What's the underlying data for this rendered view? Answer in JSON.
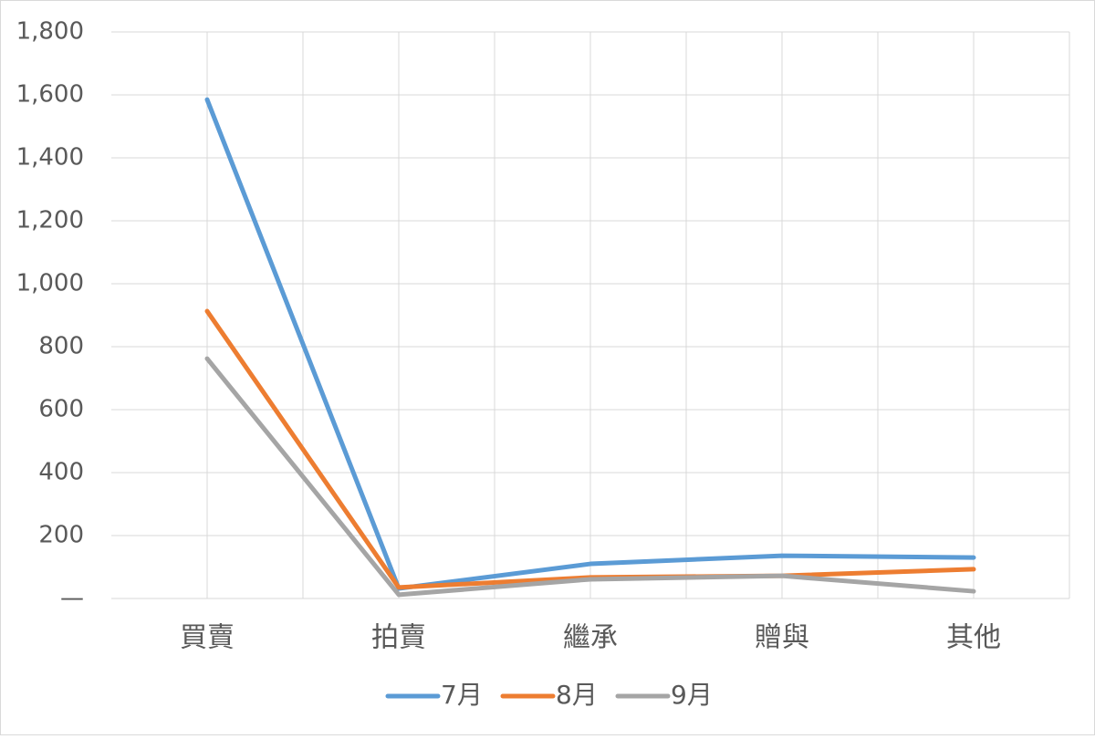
{
  "chart_data": {
    "type": "line",
    "categories": [
      "買賣",
      "拍賣",
      "繼承",
      "贈與",
      "其他"
    ],
    "series": [
      {
        "name": "7月",
        "color": "#5b9bd5",
        "values": [
          1585,
          32,
          110,
          136,
          130
        ]
      },
      {
        "name": "8月",
        "color": "#ed7d31",
        "values": [
          913,
          35,
          67,
          72,
          93
        ]
      },
      {
        "name": "9月",
        "color": "#a5a5a5",
        "values": [
          762,
          12,
          61,
          72,
          23
        ]
      }
    ],
    "ylim": [
      0,
      1800
    ],
    "yticks": [
      {
        "value": 0,
        "label": "—"
      },
      200,
      400,
      600,
      800,
      {
        "value": 1000,
        "label": "1,000"
      },
      {
        "value": 1200,
        "label": "1,200"
      },
      {
        "value": 1400,
        "label": "1,400"
      },
      {
        "value": 1600,
        "label": "1,600"
      },
      {
        "value": 1800,
        "label": "1,800"
      }
    ],
    "grid": true,
    "legend": "bottom"
  }
}
